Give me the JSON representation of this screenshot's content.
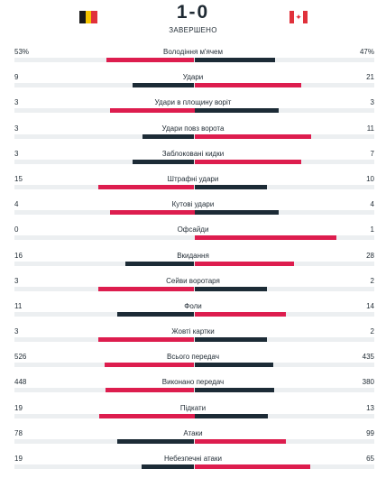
{
  "match": {
    "home_team": "Belgium",
    "away_team": "Canada",
    "score": "1-0",
    "status": "ЗАВЕРШЕНО"
  },
  "icons": {
    "home_flag": "belgium-flag-icon",
    "away_flag": "canada-flag-icon",
    "maple_leaf": "✦"
  },
  "colors": {
    "home_bar": "#1c2b36",
    "away_bar": "#dd1d4e",
    "track": "#eceff1"
  },
  "stats": [
    {
      "label": "Володіння м'ячем",
      "home": "53%",
      "away": "47%",
      "home_value": 53,
      "away_value": 47,
      "leader": "home"
    },
    {
      "label": "Удари",
      "home": "9",
      "away": "21",
      "home_value": 9,
      "away_value": 21,
      "leader": "away"
    },
    {
      "label": "Удари в площину воріт",
      "home": "3",
      "away": "3",
      "home_value": 3,
      "away_value": 3,
      "leader": "home"
    },
    {
      "label": "Удари повз ворота",
      "home": "3",
      "away": "11",
      "home_value": 3,
      "away_value": 11,
      "leader": "away"
    },
    {
      "label": "Заблоковані кидки",
      "home": "3",
      "away": "7",
      "home_value": 3,
      "away_value": 7,
      "leader": "away"
    },
    {
      "label": "Штрафні удари",
      "home": "15",
      "away": "10",
      "home_value": 15,
      "away_value": 10,
      "leader": "home"
    },
    {
      "label": "Кутові удари",
      "home": "4",
      "away": "4",
      "home_value": 4,
      "away_value": 4,
      "leader": "home"
    },
    {
      "label": "Офсайди",
      "home": "0",
      "away": "1",
      "home_value": 0,
      "away_value": 1,
      "leader": "away"
    },
    {
      "label": "Вкидання",
      "home": "16",
      "away": "28",
      "home_value": 16,
      "away_value": 28,
      "leader": "away"
    },
    {
      "label": "Сейви воротаря",
      "home": "3",
      "away": "2",
      "home_value": 3,
      "away_value": 2,
      "leader": "home"
    },
    {
      "label": "Фоли",
      "home": "11",
      "away": "14",
      "home_value": 11,
      "away_value": 14,
      "leader": "away"
    },
    {
      "label": "Жовті картки",
      "home": "3",
      "away": "2",
      "home_value": 3,
      "away_value": 2,
      "leader": "home"
    },
    {
      "label": "Всього передач",
      "home": "526",
      "away": "435",
      "home_value": 526,
      "away_value": 435,
      "leader": "home"
    },
    {
      "label": "Виконано передач",
      "home": "448",
      "away": "380",
      "home_value": 448,
      "away_value": 380,
      "leader": "home"
    },
    {
      "label": "Підкати",
      "home": "19",
      "away": "13",
      "home_value": 19,
      "away_value": 13,
      "leader": "home"
    },
    {
      "label": "Атаки",
      "home": "78",
      "away": "99",
      "home_value": 78,
      "away_value": 99,
      "leader": "away"
    },
    {
      "label": "Небезпечні атаки",
      "home": "19",
      "away": "65",
      "home_value": 19,
      "away_value": 65,
      "leader": "away"
    }
  ]
}
